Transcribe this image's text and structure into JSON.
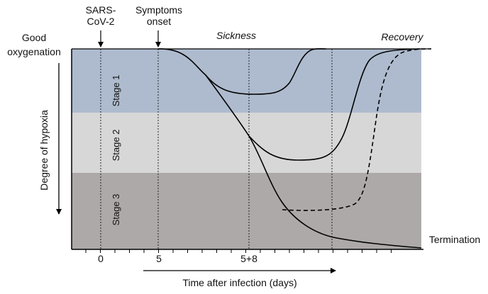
{
  "colors": {
    "stage1": "#aebbce",
    "stage2": "#d7d7d7",
    "stage3": "#ada9a8",
    "line": "#000000"
  },
  "events": {
    "sars_line1": "SARS-",
    "sars_line2": "CoV-2",
    "symptoms_line1": "Symptoms",
    "symptoms_line2": "onset"
  },
  "y_axis": {
    "top_line1": "Good",
    "top_line2": "oxygenation",
    "label": "Degree of hypoxia"
  },
  "stages": {
    "stage1": "Stage 1",
    "stage2": "Stage 2",
    "stage3": "Stage 3"
  },
  "phases": {
    "sickness": "Sickness",
    "recovery": "Recovery",
    "termination": "Termination"
  },
  "x_axis": {
    "tick_0": "0",
    "tick_5": "5",
    "tick_5_8": "5+8",
    "label": "Time after infection (days)"
  }
}
